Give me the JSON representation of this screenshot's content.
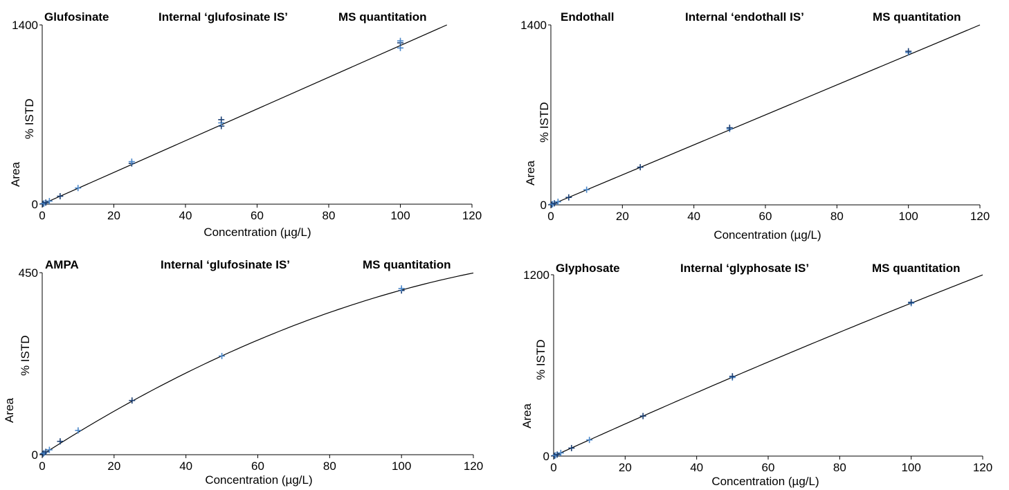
{
  "colors": {
    "marker_dark": "#1b3f73",
    "marker_light": "#4a86c8",
    "fit_line": "#000000",
    "axis": "#000000"
  },
  "chart_data": [
    {
      "type": "scatter",
      "title": "Glufosinate",
      "subtitle": "Internal ‘glufosinate IS’",
      "method": "MS quantitation",
      "xlabel": "Concentration (µg/L)",
      "ylabel_main": "Area",
      "ylabel_sub": "% ISTD",
      "xlim": [
        0,
        120
      ],
      "ylim": [
        0,
        1400
      ],
      "x_ticks": [
        "0",
        "20",
        "40",
        "60",
        "80",
        "100",
        "120"
      ],
      "y_ticks": [
        "0",
        "1400"
      ],
      "y_tick_values": [
        0,
        1400
      ],
      "grid": false,
      "fit": {
        "model": "linear",
        "x": [
          0,
          113
        ],
        "y": [
          0,
          1400
        ]
      },
      "points": [
        {
          "x": 0.2,
          "y": 2
        },
        {
          "x": 0.5,
          "y": 6
        },
        {
          "x": 1,
          "y": 12
        },
        {
          "x": 2,
          "y": 24
        },
        {
          "x": 5,
          "y": 62
        },
        {
          "x": 10,
          "y": 126
        },
        {
          "x": 25,
          "y": 318
        },
        {
          "x": 25,
          "y": 332
        },
        {
          "x": 50,
          "y": 610
        },
        {
          "x": 50,
          "y": 635
        },
        {
          "x": 50,
          "y": 660
        },
        {
          "x": 100,
          "y": 1220
        },
        {
          "x": 100,
          "y": 1260
        },
        {
          "x": 100,
          "y": 1275
        }
      ]
    },
    {
      "type": "scatter",
      "title": "Endothall",
      "subtitle": "Internal ‘endothall IS’",
      "method": "MS quantitation",
      "xlabel": "Concentration (µg/L)",
      "ylabel_main": "Area",
      "ylabel_sub": "% ISTD",
      "xlim": [
        0,
        120
      ],
      "ylim": [
        0,
        1400
      ],
      "x_ticks": [
        "0",
        "20",
        "40",
        "60",
        "80",
        "100",
        "120"
      ],
      "y_ticks": [
        "0",
        "1400"
      ],
      "y_tick_values": [
        0,
        1400
      ],
      "grid": false,
      "fit": {
        "model": "linear",
        "x": [
          0,
          120
        ],
        "y": [
          0,
          1400
        ]
      },
      "points": [
        {
          "x": 0.2,
          "y": 2
        },
        {
          "x": 0.5,
          "y": 6
        },
        {
          "x": 1,
          "y": 12
        },
        {
          "x": 2,
          "y": 24
        },
        {
          "x": 5,
          "y": 58
        },
        {
          "x": 10,
          "y": 118
        },
        {
          "x": 25,
          "y": 293
        },
        {
          "x": 50,
          "y": 590
        },
        {
          "x": 50,
          "y": 600
        },
        {
          "x": 100,
          "y": 1185
        },
        {
          "x": 100,
          "y": 1195
        }
      ]
    },
    {
      "type": "scatter",
      "title": "AMPA",
      "subtitle": "Internal ‘glufosinate IS’",
      "method": "MS quantitation",
      "xlabel": "Concentration (µg/L)",
      "ylabel_main": "Area",
      "ylabel_sub": "% ISTD",
      "xlim": [
        0,
        120
      ],
      "ylim": [
        0,
        450
      ],
      "x_ticks": [
        "0",
        "20",
        "40",
        "60",
        "80",
        "100",
        "120"
      ],
      "y_ticks": [
        "0",
        "450"
      ],
      "y_tick_values": [
        0,
        450
      ],
      "grid": false,
      "fit": {
        "model": "quadratic",
        "x": [
          0,
          120
        ],
        "a": 5.7,
        "b": -0.0163
      },
      "points": [
        {
          "x": 0.2,
          "y": 2
        },
        {
          "x": 0.5,
          "y": 4
        },
        {
          "x": 1,
          "y": 7
        },
        {
          "x": 2,
          "y": 12
        },
        {
          "x": 5,
          "y": 33
        },
        {
          "x": 10,
          "y": 60
        },
        {
          "x": 25,
          "y": 134
        },
        {
          "x": 50,
          "y": 244
        },
        {
          "x": 100,
          "y": 406
        },
        {
          "x": 100,
          "y": 411
        }
      ]
    },
    {
      "type": "scatter",
      "title": "Glyphosate",
      "subtitle": "Internal ‘glyphosate IS’",
      "method": "MS quantitation",
      "xlabel": "Concentration (µg/L)",
      "ylabel_main": "Area",
      "ylabel_sub": "% ISTD",
      "xlim": [
        0,
        120
      ],
      "ylim": [
        0,
        1200
      ],
      "x_ticks": [
        "0",
        "20",
        "40",
        "60",
        "80",
        "100",
        "120"
      ],
      "y_ticks": [
        "0",
        "1200"
      ],
      "y_tick_values": [
        0,
        1200
      ],
      "grid": false,
      "fit": {
        "model": "quadratic",
        "x": [
          0,
          120
        ],
        "a": 10.76,
        "b": -0.0064
      },
      "points": [
        {
          "x": 0.2,
          "y": 2
        },
        {
          "x": 0.5,
          "y": 5
        },
        {
          "x": 1,
          "y": 10
        },
        {
          "x": 2,
          "y": 21
        },
        {
          "x": 5,
          "y": 53
        },
        {
          "x": 10,
          "y": 107
        },
        {
          "x": 25,
          "y": 265
        },
        {
          "x": 50,
          "y": 520
        },
        {
          "x": 50,
          "y": 528
        },
        {
          "x": 100,
          "y": 1012
        },
        {
          "x": 100,
          "y": 1018
        }
      ]
    }
  ]
}
